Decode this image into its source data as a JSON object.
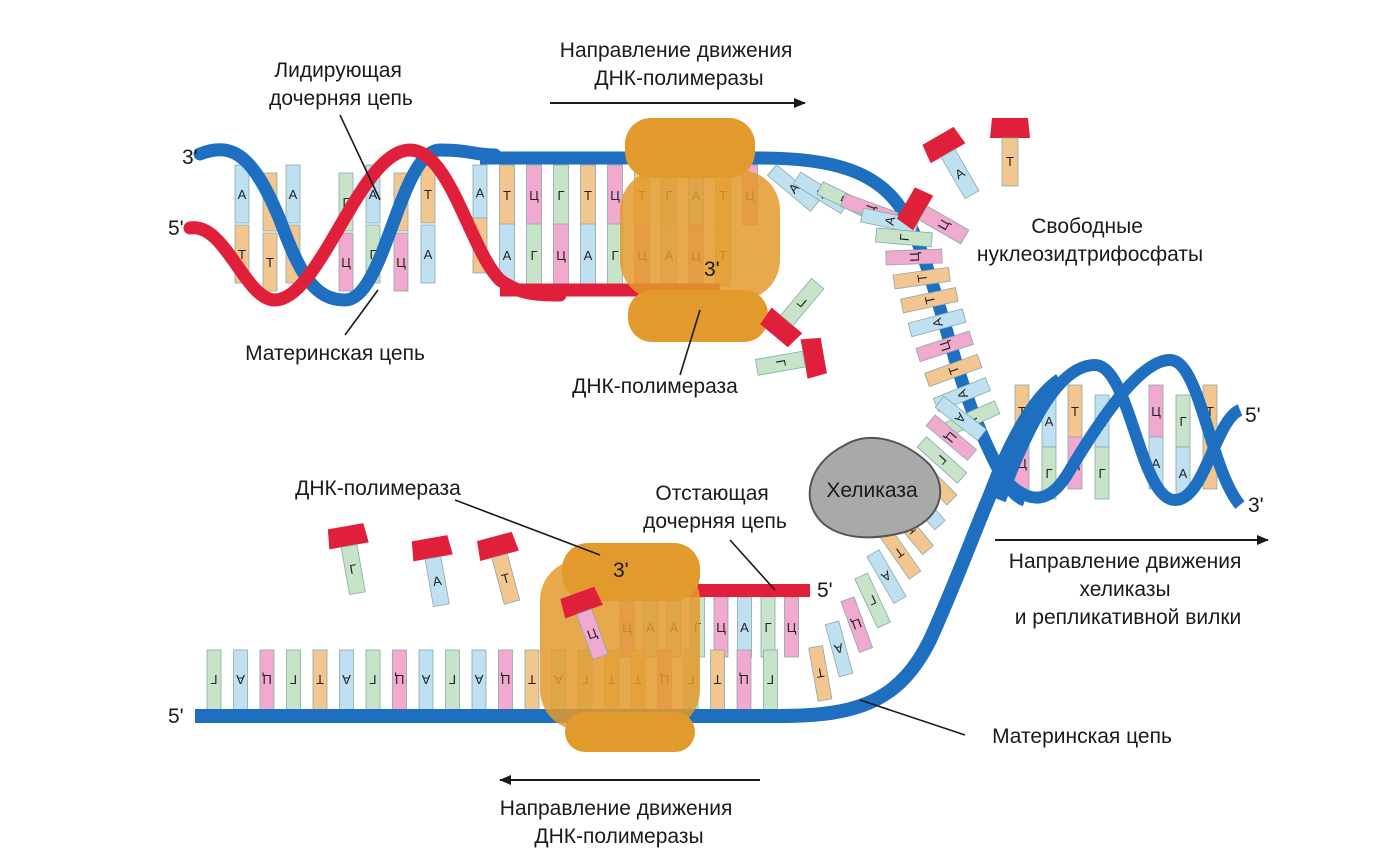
{
  "labels": {
    "top_direction": [
      "Направление движения",
      "ДНК-полимеразы"
    ],
    "leading_strand": [
      "Лидирующая",
      "дочерняя цепь"
    ],
    "parent_strand_top": "Материнская цепь",
    "polymerase_top": "ДНК-полимераза",
    "free_nucleotides": [
      "Свободные",
      "нуклеозидтрифосфаты"
    ],
    "helicase": "Хеликаза",
    "polymerase_bottom": "ДНК-полимераза",
    "lagging_strand": [
      "Отстающая",
      "дочерняя цепь"
    ],
    "helicase_direction": [
      "Направление движения",
      "хеликазы",
      "и репликативной вилки"
    ],
    "parent_strand_bottom": "Материнская цепь",
    "bottom_direction": [
      "Направление движения",
      "ДНК-полимеразы"
    ]
  },
  "ends": {
    "top_left_3": "3'",
    "top_left_5": "5'",
    "polymerase_top_3": "3'",
    "right_5": "5'",
    "right_3": "3'",
    "lagging_5": "5'",
    "polymerase_bottom_3": "3'",
    "bottom_left_5": "5'"
  },
  "bases": {
    "left_helix": [
      "А",
      "Т",
      "Т",
      "Т",
      "А",
      "Т",
      "Г",
      "Ц",
      "А",
      "Г",
      "Т",
      "Ц",
      "Т",
      "А",
      "А",
      "Ц"
    ],
    "top_upper_row": [
      "Т",
      "Ц",
      "Г",
      "Т",
      "Ц",
      "Т",
      "Г",
      "А",
      "Т",
      "Ц"
    ],
    "top_lower_row": [
      "А",
      "Г",
      "Ц",
      "А",
      "Г",
      "Ц",
      "А",
      "Ц",
      "Т"
    ],
    "top_left_pair": [
      "А",
      "Т"
    ],
    "fork_upper_strand": [
      "А",
      "А",
      "Г",
      "Ц",
      "А",
      "Г",
      "Ц",
      "Т",
      "Т",
      "А",
      "Ц",
      "Т",
      "А",
      "Г"
    ],
    "fork_lower_strand": [
      "Т",
      "А",
      "Ц",
      "Г",
      "А",
      "Т",
      "Т",
      "А",
      "Т",
      "Г",
      "Ц",
      "А"
    ],
    "lagging_top_row": [
      "Ц",
      "А",
      "А",
      "Г",
      "Ц",
      "А",
      "Г",
      "Ц"
    ],
    "bottom_row": [
      "Г",
      "А",
      "Ц",
      "Г",
      "Т",
      "А",
      "Г",
      "Ц",
      "А",
      "Г",
      "А",
      "Ц",
      "Т",
      "А",
      "Г",
      "Т",
      "Т",
      "Ц",
      "Г",
      "Т",
      "Ц",
      "Г"
    ],
    "right_helix": [
      "Т",
      "Ц",
      "А",
      "Г",
      "Т",
      "Ц",
      "А",
      "Г",
      "Ц",
      "А",
      "Г",
      "А",
      "Т",
      "Т",
      "А",
      "Т"
    ],
    "free_nucleotides_top": [
      "А",
      "Т",
      "Ц",
      "Г",
      "Г"
    ],
    "free_nucleotides_bottom": [
      "Г",
      "А",
      "Т"
    ]
  },
  "colors": {
    "parent_strand": "#1e6fc0",
    "daughter_strand": "#e0203a",
    "polymerase": "#e39a2c",
    "helicase": "#a9a9a9",
    "base_A": "#bfe0f0",
    "base_T": "#f3c690",
    "base_G": "#c7e3c8",
    "base_C": "#f2a9cf"
  }
}
